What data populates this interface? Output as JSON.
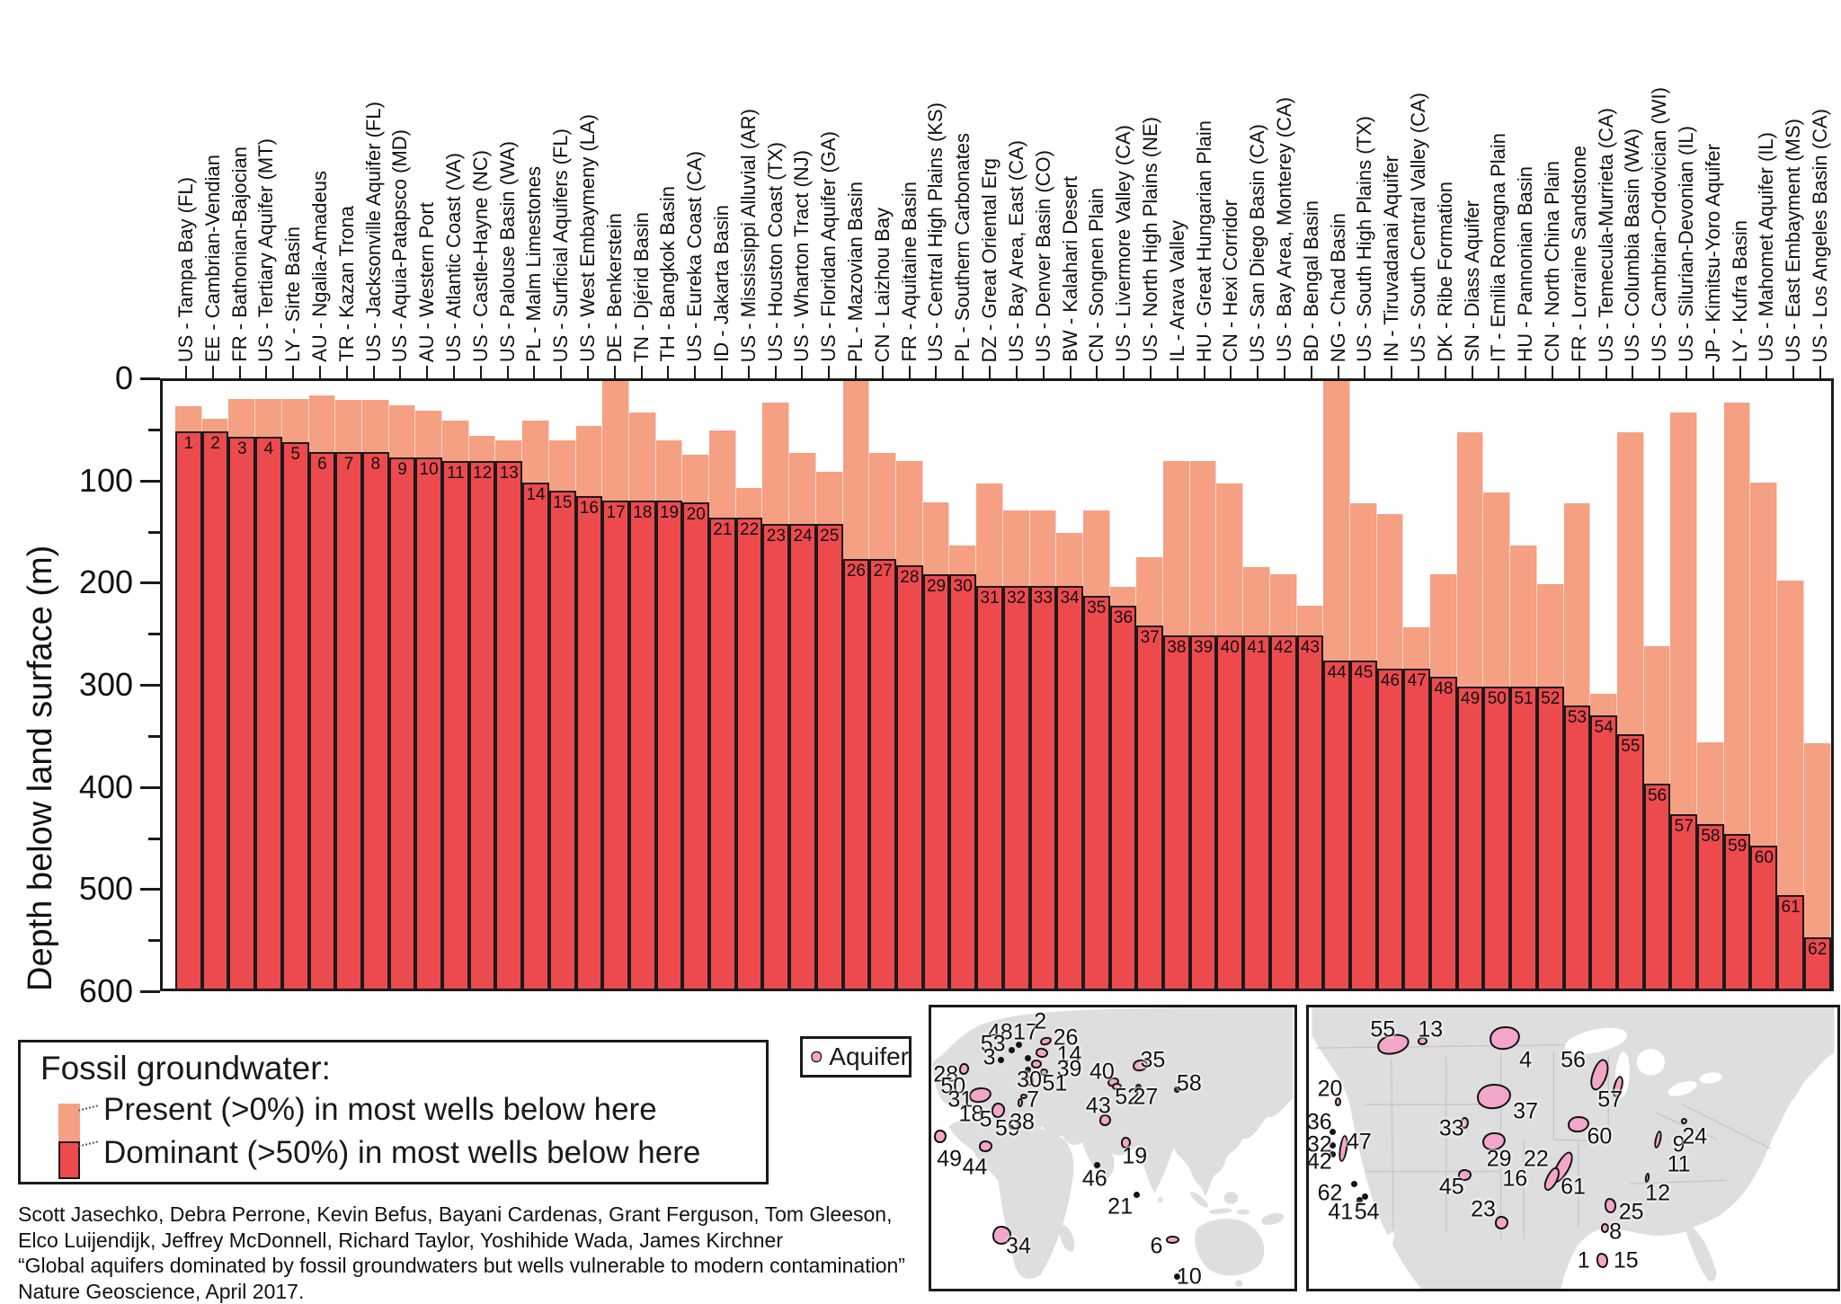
{
  "colors": {
    "present": "#F5A083",
    "dominant": "#ED4A4E",
    "outline": "#1a1a1a",
    "aquifer_fill": "#F2A6C9",
    "land": "#DEDEDE",
    "state_line": "#c4c4c4"
  },
  "y_axis": {
    "title": "Depth below land surface (m)",
    "tick_labels": [
      "0",
      "100",
      "200",
      "300",
      "400",
      "500",
      "600"
    ]
  },
  "chart_data": {
    "type": "bar",
    "title": "",
    "ylabel": "Depth below land surface (m)",
    "ylim": [
      0,
      600
    ],
    "y_ticks": [
      0,
      100,
      200,
      300,
      400,
      500,
      600
    ],
    "grid": false,
    "categories": [
      "US - Tampa Bay (FL)",
      "EE - Cambrian-Vendian",
      "FR - Bathonian-Bajocian",
      "US - Tertiary Aquifer (MT)",
      "LY - Sirte Basin",
      "AU - Ngalia-Amadeus",
      "TR - Kazan Trona",
      "US - Jacksonville Aquifer (FL)",
      "US - Aquia-Patapsco (MD)",
      "AU - Western Port",
      "US - Atlantic Coast (VA)",
      "US - Castle-Hayne (NC)",
      "US - Palouse Basin (WA)",
      "PL - Malm Limestones",
      "US - Surficial Aquifers (FL)",
      "US - West Embaymeny (LA)",
      "DE - Benkerstein",
      "TN - Djérid Basin",
      "TH - Bangkok Basin",
      "US - Eureka Coast (CA)",
      "ID - Jakarta Basin",
      "US - Mississippi Alluvial (AR)",
      "US - Houston Coast (TX)",
      "US - Wharton Tract (NJ)",
      "US - Floridan Aquifer (GA)",
      "PL - Mazovian Basin",
      "CN - Laizhou Bay",
      "FR - Aquitaine Basin",
      "US - Central High Plains (KS)",
      "PL - Southern Carbonates",
      "DZ - Great Oriental Erg",
      "US - Bay Area, East (CA)",
      "US - Denver Basin (CO)",
      "BW - Kalahari Desert",
      "CN - Songnen Plain",
      "US - Livermore Valley (CA)",
      "US - North High Plains (NE)",
      "IL - Arava Valley",
      "HU - Great Hungarian Plain",
      "CN - Hexi Corridor",
      "US - San Diego Basin (CA)",
      "US - Bay Area, Monterey (CA)",
      "BD - Bengal Basin",
      "NG - Chad Basin",
      "US - South High Plains (TX)",
      "IN - Tiruvadanai Aquifer",
      "US - South Central Valley (CA)",
      "DK - Ribe Formation",
      "SN - Diass Aquifer",
      "IT - Emilia Romagna Plain",
      "HU - Pannonian Basin",
      "CN - North China Plain",
      "FR - Lorraine Sandstone",
      "US - Temecula-Murrieta (CA)",
      "US - Columbia Basin (WA)",
      "US - Cambrian-Ordovician (WI)",
      "US - Silurian-Devonian (IL)",
      "JP - Kimitsu-Yoro Aquifer",
      "LY - Kufra Basin",
      "US - Mahomet Aquifer (IL)",
      "US - East Embayment (MS)",
      "US - Los Angeles Basin (CA)"
    ],
    "ranks": [
      1,
      2,
      3,
      4,
      5,
      6,
      7,
      8,
      9,
      10,
      11,
      12,
      13,
      14,
      15,
      16,
      17,
      18,
      19,
      20,
      21,
      22,
      23,
      24,
      25,
      26,
      27,
      28,
      29,
      30,
      31,
      32,
      33,
      34,
      35,
      36,
      37,
      38,
      39,
      40,
      41,
      42,
      43,
      44,
      45,
      46,
      47,
      48,
      49,
      50,
      51,
      52,
      53,
      54,
      55,
      56,
      57,
      58,
      59,
      60,
      61,
      62
    ],
    "series": [
      {
        "name": "Present (>0%) in most wells below here",
        "color": "#F5A083",
        "values": [
          25,
          37,
          18,
          18,
          18,
          14,
          19,
          19,
          24,
          29,
          39,
          54,
          59,
          39,
          59,
          44,
          0,
          31,
          59,
          73,
          49,
          106,
          21,
          71,
          90,
          0,
          71,
          79,
          120,
          162,
          101,
          128,
          128,
          150,
          128,
          203,
          174,
          79,
          79,
          101,
          184,
          191,
          222,
          0,
          121,
          131,
          243,
          191,
          51,
          110,
          162,
          201,
          121,
          309,
          51,
          262,
          31,
          357,
          21,
          100,
          197,
          358
        ]
      },
      {
        "name": "Dominant (>50%) in most wells below here",
        "color": "#ED4A4E",
        "values": [
          50,
          50,
          55,
          55,
          60,
          70,
          70,
          70,
          75,
          75,
          79,
          79,
          79,
          100,
          108,
          114,
          118,
          118,
          118,
          120,
          135,
          135,
          141,
          141,
          141,
          176,
          176,
          182,
          191,
          191,
          202,
          202,
          202,
          202,
          212,
          222,
          241,
          251,
          251,
          251,
          251,
          251,
          251,
          276,
          276,
          284,
          284,
          292,
          302,
          302,
          302,
          302,
          320,
          330,
          349,
          398,
          428,
          438,
          447,
          459,
          508,
          549
        ]
      }
    ]
  },
  "legend": {
    "title": "Fossil groundwater:",
    "items": [
      {
        "label": "Present (>0%) in most wells below here",
        "color": "#F5A083"
      },
      {
        "label": "Dominant (>50%) in most wells below here",
        "color": "#ED4A4E"
      }
    ]
  },
  "aquifer_legend": {
    "label": "Aquifer"
  },
  "citation": {
    "lines": [
      "Scott Jasechko, Debra Perrone, Kevin Befus, Bayani Cardenas, Grant Ferguson, Tom Gleeson,",
      "Elco Luijendijk, Jeffrey McDonnell, Richard Taylor, Yoshihide Wada, James Kirchner",
      "“Global aquifers dominated by fossil groundwaters but wells vulnerable to modern contamination”",
      "Nature Geoscience, April 2017."
    ]
  },
  "maps": {
    "left": {
      "markers": [
        {
          "n": 48,
          "l": [
            19,
            9
          ],
          "d": [
            24,
            13
          ]
        },
        {
          "n": 17,
          "l": [
            26,
            9
          ],
          "d": [
            26.5,
            18
          ]
        },
        {
          "n": 2,
          "l": [
            30,
            5
          ],
          "b": [
            31.5,
            12,
            13,
            9,
            -15
          ]
        },
        {
          "n": 26,
          "l": [
            37,
            11
          ],
          "b": [
            30.5,
            16,
            14,
            11,
            10
          ]
        },
        {
          "n": 14,
          "l": [
            38,
            17
          ],
          "b": [
            29,
            20,
            12,
            10,
            0
          ]
        },
        {
          "n": 39,
          "l": [
            38,
            22
          ],
          "b": [
            31,
            23,
            9,
            8,
            0
          ]
        },
        {
          "n": 53,
          "l": [
            17,
            13
          ],
          "d": [
            22,
            15
          ]
        },
        {
          "n": 3,
          "l": [
            16,
            18
          ],
          "d": [
            19,
            18.5
          ]
        },
        {
          "n": 28,
          "l": [
            4,
            24
          ],
          "b": [
            9,
            22,
            11,
            13,
            10
          ]
        },
        {
          "n": 50,
          "l": [
            6,
            28
          ],
          "b": [
            27,
            26,
            9,
            11,
            -20
          ]
        },
        {
          "n": 30,
          "l": [
            27,
            26
          ],
          "d": [
            26.5,
            22
          ]
        },
        {
          "n": 51,
          "l": [
            34,
            27
          ]
        },
        {
          "n": 31,
          "l": [
            8,
            33
          ],
          "b": [
            13.5,
            31,
            25,
            17,
            -8
          ]
        },
        {
          "n": 18,
          "l": [
            11,
            38
          ]
        },
        {
          "n": 5,
          "l": [
            15,
            40
          ],
          "b": [
            18.5,
            36.5,
            15,
            17,
            5
          ]
        },
        {
          "n": 59,
          "l": [
            21,
            43
          ]
        },
        {
          "n": 38,
          "l": [
            25,
            41
          ],
          "b": [
            24.5,
            34,
            6,
            10,
            0
          ]
        },
        {
          "n": 7,
          "l": [
            28,
            33
          ],
          "b": [
            25.5,
            31.5,
            8,
            6,
            0
          ]
        },
        {
          "n": 49,
          "l": [
            5,
            54
          ],
          "b": [
            2.5,
            46,
            14,
            15,
            0
          ]
        },
        {
          "n": 44,
          "l": [
            12,
            57
          ],
          "b": [
            15,
            49.5,
            15,
            13,
            0
          ]
        },
        {
          "n": 34,
          "l": [
            24,
            85
          ],
          "b": [
            19.5,
            81,
            21,
            21,
            0
          ]
        },
        {
          "n": 40,
          "l": [
            47,
            23
          ],
          "b": [
            50,
            26.5,
            13,
            10,
            -15
          ]
        },
        {
          "n": 52,
          "l": [
            54,
            32
          ],
          "b": [
            51,
            28,
            11,
            8,
            0
          ]
        },
        {
          "n": 27,
          "l": [
            59,
            32
          ],
          "d": [
            57,
            28
          ]
        },
        {
          "n": 35,
          "l": [
            61,
            19
          ],
          "b": [
            57.5,
            20.5,
            17,
            13,
            -10
          ]
        },
        {
          "n": 58,
          "l": [
            71,
            27
          ],
          "d": [
            67.5,
            29
          ]
        },
        {
          "n": 43,
          "l": [
            46,
            35
          ],
          "b": [
            48,
            40,
            13,
            13,
            0
          ]
        },
        {
          "n": 19,
          "l": [
            56,
            53
          ],
          "b": [
            53.5,
            48,
            11,
            13,
            0
          ]
        },
        {
          "n": 46,
          "l": [
            45,
            61
          ],
          "d": [
            45.5,
            56
          ]
        },
        {
          "n": 21,
          "l": [
            52,
            71
          ],
          "d": [
            56.5,
            66.5
          ]
        },
        {
          "n": 6,
          "l": [
            62,
            85
          ],
          "b": [
            66.5,
            82.5,
            15,
            9,
            0
          ]
        },
        {
          "n": 10,
          "l": [
            71,
            96
          ],
          "d": [
            67.5,
            95.5
          ]
        }
      ]
    },
    "right": {
      "markers": [
        {
          "n": 55,
          "l": [
            14,
            8
          ],
          "b": [
            16,
            13,
            36,
            22,
            -12
          ]
        },
        {
          "n": 13,
          "l": [
            23,
            8
          ],
          "b": [
            21.5,
            12,
            11,
            9,
            0
          ]
        },
        {
          "n": 4,
          "l": [
            41,
            19
          ],
          "b": [
            37,
            11,
            34,
            26,
            -8
          ]
        },
        {
          "n": 56,
          "l": [
            50,
            19
          ],
          "b": [
            55,
            24,
            17,
            36,
            18
          ]
        },
        {
          "n": 57,
          "l": [
            57,
            33
          ],
          "b": [
            58.5,
            28,
            10,
            24,
            15
          ]
        },
        {
          "n": 20,
          "l": [
            4,
            29
          ],
          "b": [
            5.5,
            33.5,
            7,
            10,
            0
          ]
        },
        {
          "n": 36,
          "l": [
            2,
            41
          ],
          "d": [
            4.5,
            44
          ]
        },
        {
          "n": 32,
          "l": [
            2,
            49
          ],
          "d": [
            4.5,
            49
          ]
        },
        {
          "n": 42,
          "l": [
            2,
            55
          ],
          "d": [
            4.5,
            52
          ]
        },
        {
          "n": 47,
          "l": [
            9.5,
            48
          ],
          "b": [
            6.5,
            50,
            9,
            30,
            8
          ]
        },
        {
          "n": 33,
          "l": [
            27,
            43
          ],
          "b": [
            29.5,
            41,
            9,
            13,
            0
          ]
        },
        {
          "n": 37,
          "l": [
            41,
            37
          ],
          "b": [
            35,
            31.5,
            38,
            28,
            -5
          ]
        },
        {
          "n": 29,
          "l": [
            36,
            54
          ],
          "b": [
            35,
            47.5,
            26,
            20,
            -8
          ]
        },
        {
          "n": 60,
          "l": [
            55,
            46
          ],
          "b": [
            51,
            41.5,
            24,
            18,
            -5
          ]
        },
        {
          "n": 22,
          "l": [
            43,
            54
          ],
          "b": [
            48,
            57,
            15,
            38,
            28
          ]
        },
        {
          "n": 61,
          "l": [
            50,
            64
          ],
          "b": [
            46,
            61,
            13,
            28,
            25
          ]
        },
        {
          "n": 16,
          "l": [
            39,
            61
          ]
        },
        {
          "n": 45,
          "l": [
            27,
            64
          ],
          "b": [
            29.5,
            59.5,
            15,
            13,
            0
          ]
        },
        {
          "n": 23,
          "l": [
            33,
            72
          ],
          "b": [
            36.5,
            76.5,
            15,
            15,
            0
          ]
        },
        {
          "n": 25,
          "l": [
            61,
            73
          ],
          "b": [
            57,
            70.5,
            13,
            17,
            -8
          ]
        },
        {
          "n": 8,
          "l": [
            58,
            80
          ],
          "b": [
            56,
            78.5,
            9,
            11,
            0
          ]
        },
        {
          "n": 62,
          "l": [
            4,
            66
          ],
          "d": [
            8.5,
            62.5
          ]
        },
        {
          "n": 41,
          "l": [
            6,
            73
          ],
          "d": [
            9.5,
            68.5
          ]
        },
        {
          "n": 54,
          "l": [
            11,
            73
          ],
          "d": [
            10.5,
            67
          ]
        },
        {
          "n": 9,
          "l": [
            70,
            49
          ],
          "b": [
            66,
            47,
            7,
            20,
            12
          ]
        },
        {
          "n": 24,
          "l": [
            73,
            46
          ],
          "b": [
            71,
            40.5,
            7,
            7,
            0
          ]
        },
        {
          "n": 11,
          "l": [
            70,
            56
          ]
        },
        {
          "n": 12,
          "l": [
            66,
            66
          ],
          "b": [
            64,
            60.5,
            5,
            11,
            10
          ]
        },
        {
          "n": 1,
          "l": [
            52,
            90
          ],
          "b": [
            55.5,
            90,
            13,
            17,
            -10
          ]
        },
        {
          "n": 15,
          "l": [
            60,
            90
          ]
        }
      ]
    }
  }
}
